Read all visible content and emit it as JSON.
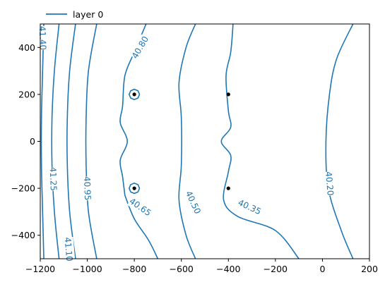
{
  "chart_data": {
    "type": "contour",
    "xlim": [
      -1200,
      200
    ],
    "ylim": [
      -500,
      500
    ],
    "xticks": [
      -1200,
      -1000,
      -800,
      -600,
      -400,
      -200,
      0,
      200
    ],
    "yticks": [
      -400,
      -200,
      0,
      200,
      400
    ],
    "xtick_labels": [
      "−1200",
      "−1000",
      "−800",
      "−600",
      "−400",
      "−200",
      "0",
      "200"
    ],
    "ytick_labels": [
      "−400",
      "−200",
      "0",
      "200",
      "400"
    ],
    "grid": false,
    "legend": {
      "position": "top-left, above plot",
      "entries": [
        {
          "label": "layer 0",
          "color": "#1f77b4"
        }
      ]
    },
    "series_color": "#1f77b4",
    "wells": [
      {
        "x": -800,
        "y": 200
      },
      {
        "x": -800,
        "y": -200
      },
      {
        "x": -400,
        "y": 200
      },
      {
        "x": -400,
        "y": -200
      }
    ],
    "contours": [
      {
        "level": "41.40",
        "points": [
          [
            -1185,
            500
          ],
          [
            -1190,
            300
          ],
          [
            -1195,
            100
          ],
          [
            -1195,
            -100
          ],
          [
            -1190,
            -300
          ],
          [
            -1185,
            -500
          ]
        ]
      },
      {
        "level": "41.25",
        "points": [
          [
            -1120,
            500
          ],
          [
            -1140,
            300
          ],
          [
            -1150,
            100
          ],
          [
            -1150,
            -100
          ],
          [
            -1140,
            -300
          ],
          [
            -1120,
            -500
          ]
        ]
      },
      {
        "level": "41.10",
        "points": [
          [
            -1050,
            500
          ],
          [
            -1075,
            300
          ],
          [
            -1085,
            100
          ],
          [
            -1085,
            -100
          ],
          [
            -1075,
            -300
          ],
          [
            -1050,
            -500
          ]
        ]
      },
      {
        "level": "40.95",
        "points": [
          [
            -960,
            500
          ],
          [
            -995,
            300
          ],
          [
            -1005,
            100
          ],
          [
            -1005,
            -100
          ],
          [
            -995,
            -300
          ],
          [
            -960,
            -500
          ]
        ]
      },
      {
        "level": "40.80",
        "points": [
          [
            -750,
            500
          ],
          [
            -800,
            380
          ],
          [
            -840,
            280
          ],
          [
            -850,
            150
          ],
          [
            -860,
            80
          ],
          [
            -830,
            0
          ],
          [
            -860,
            -80
          ],
          [
            -850,
            -150
          ],
          [
            -840,
            -230
          ]
        ]
      },
      {
        "level": "40.65",
        "points": [
          [
            -840,
            -230
          ],
          [
            -800,
            -330
          ],
          [
            -740,
            -420
          ],
          [
            -700,
            -500
          ]
        ]
      },
      {
        "level": "40.50",
        "points": [
          [
            -540,
            500
          ],
          [
            -580,
            400
          ],
          [
            -610,
            250
          ],
          [
            -600,
            100
          ],
          [
            -600,
            -100
          ],
          [
            -610,
            -250
          ],
          [
            -580,
            -400
          ],
          [
            -540,
            -500
          ]
        ]
      },
      {
        "level": "40.35",
        "points": [
          [
            -380,
            500
          ],
          [
            -390,
            380
          ],
          [
            -410,
            280
          ],
          [
            -400,
            130
          ],
          [
            -390,
            60
          ],
          [
            -430,
            0
          ],
          [
            -390,
            -60
          ],
          [
            -400,
            -130
          ],
          [
            -420,
            -250
          ],
          [
            -360,
            -320
          ],
          [
            -200,
            -380
          ],
          [
            -100,
            -500
          ]
        ]
      },
      {
        "level": "40.20",
        "points": [
          [
            130,
            500
          ],
          [
            60,
            350
          ],
          [
            30,
            200
          ],
          [
            15,
            0
          ],
          [
            25,
            -200
          ],
          [
            80,
            -380
          ],
          [
            130,
            -500
          ]
        ]
      }
    ],
    "closed_contours": [
      {
        "cx": -800,
        "cy": 200,
        "rx": 22,
        "ry": 22
      },
      {
        "cx": -800,
        "cy": -200,
        "rx": 22,
        "ry": 22
      }
    ],
    "contour_labels": [
      {
        "text": "41.40",
        "x": -1190,
        "y": 440,
        "angle": 88
      },
      {
        "text": "41.25",
        "x": -1145,
        "y": -160,
        "angle": 88
      },
      {
        "text": "41.10",
        "x": -1080,
        "y": -460,
        "angle": 85
      },
      {
        "text": "40.95",
        "x": -1000,
        "y": -200,
        "angle": 88
      },
      {
        "text": "40.80",
        "x": -775,
        "y": 400,
        "angle": -60
      },
      {
        "text": "40.65",
        "x": -775,
        "y": -280,
        "angle": 35
      },
      {
        "text": "40.50",
        "x": -550,
        "y": -260,
        "angle": 65
      },
      {
        "text": "40.35",
        "x": -310,
        "y": -280,
        "angle": 25
      },
      {
        "text": "40.20",
        "x": 30,
        "y": -180,
        "angle": 85
      }
    ]
  }
}
